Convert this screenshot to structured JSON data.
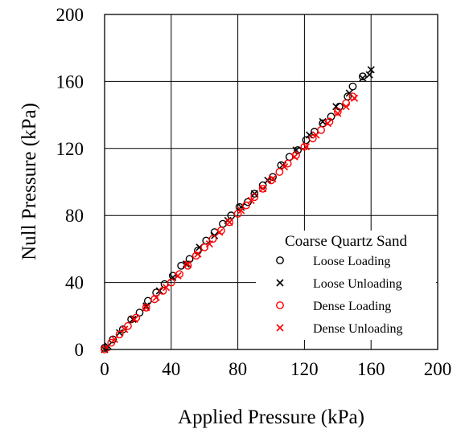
{
  "chart_data": {
    "type": "scatter",
    "xlabel": "Applied Pressure (kPa)",
    "ylabel": "Null Pressure (kPa)",
    "xlim": [
      0,
      200
    ],
    "ylim": [
      0,
      200
    ],
    "xticks": [
      "0",
      "40",
      "80",
      "120",
      "160",
      "200"
    ],
    "yticks": [
      "0",
      "40",
      "80",
      "120",
      "160",
      "200"
    ],
    "grid": true,
    "legend": {
      "title": "Coarse Quartz Sand",
      "placement": "bottom-right"
    },
    "series": [
      {
        "name": "Loose Loading",
        "marker": "circle",
        "color": "#000000",
        "points": [
          [
            0,
            1
          ],
          [
            5,
            6
          ],
          [
            11,
            12
          ],
          [
            16,
            18
          ],
          [
            21,
            22
          ],
          [
            26,
            29
          ],
          [
            31,
            34
          ],
          [
            36,
            39
          ],
          [
            41,
            44
          ],
          [
            46,
            50
          ],
          [
            51,
            54
          ],
          [
            56,
            59
          ],
          [
            61,
            65
          ],
          [
            66,
            70
          ],
          [
            71,
            75
          ],
          [
            76,
            80
          ],
          [
            81,
            85
          ],
          [
            86,
            88
          ],
          [
            90,
            93
          ],
          [
            95,
            98
          ],
          [
            101,
            103
          ],
          [
            106,
            110
          ],
          [
            111,
            115
          ],
          [
            116,
            119
          ],
          [
            121,
            125
          ],
          [
            126,
            130
          ],
          [
            131,
            135
          ],
          [
            136,
            139
          ],
          [
            141,
            145
          ],
          [
            146,
            151
          ],
          [
            149,
            157
          ],
          [
            155,
            163
          ]
        ]
      },
      {
        "name": "Loose Unloading",
        "marker": "x",
        "color": "#000000",
        "points": [
          [
            160,
            167
          ],
          [
            159,
            164
          ],
          [
            155,
            162
          ],
          [
            147,
            153
          ],
          [
            139,
            145
          ],
          [
            131,
            136
          ],
          [
            123,
            128
          ],
          [
            115,
            119
          ],
          [
            107,
            110
          ],
          [
            98,
            101
          ],
          [
            90,
            93
          ],
          [
            82,
            85
          ],
          [
            74,
            77
          ],
          [
            66,
            68
          ],
          [
            57,
            61
          ],
          [
            49,
            51
          ],
          [
            41,
            43
          ],
          [
            33,
            35
          ],
          [
            25,
            26
          ],
          [
            17,
            18
          ],
          [
            9,
            10
          ],
          [
            2,
            2
          ],
          [
            0,
            0
          ]
        ]
      },
      {
        "name": "Dense Loading",
        "marker": "circle",
        "color": "#ff0000",
        "points": [
          [
            0,
            0
          ],
          [
            4,
            4
          ],
          [
            9,
            9
          ],
          [
            14,
            14
          ],
          [
            19,
            19
          ],
          [
            25,
            25
          ],
          [
            30,
            30
          ],
          [
            35,
            35
          ],
          [
            40,
            40
          ],
          [
            45,
            45
          ],
          [
            50,
            50
          ],
          [
            55,
            56
          ],
          [
            60,
            61
          ],
          [
            65,
            66
          ],
          [
            70,
            71
          ],
          [
            75,
            76
          ],
          [
            80,
            81
          ],
          [
            85,
            86
          ],
          [
            90,
            91
          ],
          [
            95,
            96
          ],
          [
            100,
            101
          ],
          [
            105,
            106
          ],
          [
            110,
            111
          ],
          [
            115,
            116
          ],
          [
            120,
            121
          ],
          [
            125,
            126
          ],
          [
            130,
            131
          ],
          [
            135,
            136
          ],
          [
            140,
            142
          ],
          [
            145,
            147
          ],
          [
            149,
            151
          ]
        ]
      },
      {
        "name": "Dense Unloading",
        "marker": "x",
        "color": "#ff0000",
        "points": [
          [
            150,
            150
          ],
          [
            145,
            145
          ],
          [
            140,
            141
          ],
          [
            134,
            135
          ],
          [
            127,
            128
          ],
          [
            121,
            121
          ],
          [
            114,
            115
          ],
          [
            108,
            109
          ],
          [
            101,
            102
          ],
          [
            95,
            96
          ],
          [
            88,
            89
          ],
          [
            82,
            83
          ],
          [
            75,
            76
          ],
          [
            69,
            70
          ],
          [
            63,
            63
          ],
          [
            56,
            57
          ],
          [
            50,
            51
          ],
          [
            44,
            44
          ],
          [
            37,
            37
          ],
          [
            31,
            31
          ],
          [
            25,
            25
          ],
          [
            18,
            18
          ],
          [
            12,
            12
          ],
          [
            6,
            6
          ],
          [
            1,
            1
          ]
        ]
      }
    ]
  }
}
